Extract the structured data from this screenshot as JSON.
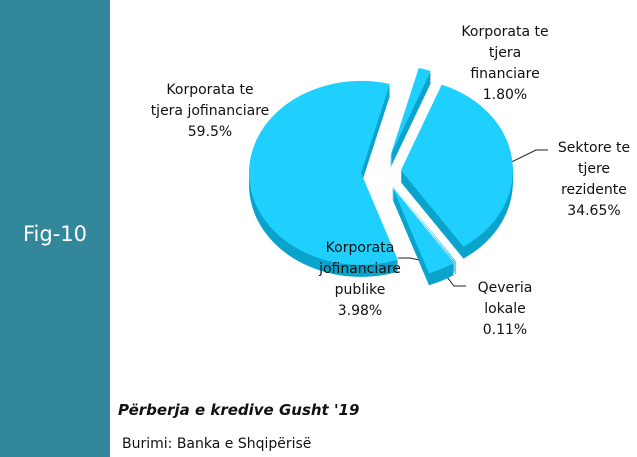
{
  "fig_label": "Fig-10",
  "chart_data": {
    "type": "pie",
    "title": "Përberja e kredive Gusht '19",
    "source": "Burimi: Banka e Shqipërisë",
    "categories": [
      "Korporata te tjera financiare",
      "Sektore te tjere rezidente",
      "Qeveria lokale",
      "Korporata jofinanciare publike",
      "Korporata te tjera jofinanciare"
    ],
    "values": [
      1.8,
      34.65,
      0.11,
      3.98,
      59.5
    ],
    "value_labels": [
      "1.80%",
      "34.65%",
      "0.11%",
      "3.98%",
      "59.5%"
    ],
    "color": "#1fd0ff"
  }
}
